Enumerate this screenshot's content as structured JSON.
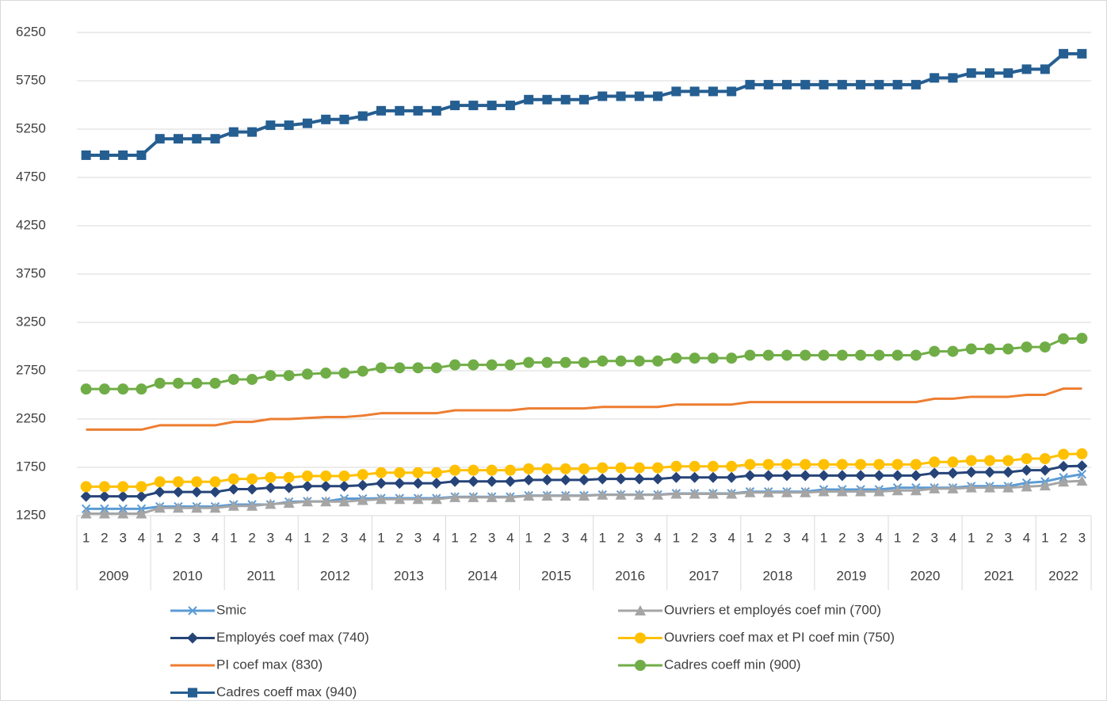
{
  "chart_data": {
    "type": "line",
    "categories": [
      "1",
      "2",
      "3",
      "4",
      "1",
      "2",
      "3",
      "4",
      "1",
      "2",
      "3",
      "4",
      "1",
      "2",
      "3",
      "4",
      "1",
      "2",
      "3",
      "4",
      "1",
      "2",
      "3",
      "4",
      "1",
      "2",
      "3",
      "4",
      "1",
      "2",
      "3",
      "4",
      "1",
      "2",
      "3",
      "4",
      "1",
      "2",
      "3",
      "4",
      "1",
      "2",
      "3",
      "4",
      "1",
      "2",
      "3",
      "4",
      "1",
      "2",
      "3",
      "4",
      "1",
      "2",
      "3"
    ],
    "category_groups": [
      {
        "label": "2009",
        "count": 4
      },
      {
        "label": "2010",
        "count": 4
      },
      {
        "label": "2011",
        "count": 4
      },
      {
        "label": "2012",
        "count": 4
      },
      {
        "label": "2013",
        "count": 4
      },
      {
        "label": "2014",
        "count": 4
      },
      {
        "label": "2015",
        "count": 4
      },
      {
        "label": "2016",
        "count": 4
      },
      {
        "label": "2017",
        "count": 4
      },
      {
        "label": "2018",
        "count": 4
      },
      {
        "label": "2019",
        "count": 4
      },
      {
        "label": "2020",
        "count": 4
      },
      {
        "label": "2021",
        "count": 4
      },
      {
        "label": "2022",
        "count": 3
      }
    ],
    "ylim": [
      1250,
      6250
    ],
    "yticks": [
      1250,
      1750,
      2250,
      2750,
      3250,
      3750,
      4250,
      4750,
      5250,
      5750,
      6250
    ],
    "grid": true,
    "legend": "bottom",
    "series": [
      {
        "name": "Smic",
        "color": "#5b9bd5",
        "marker": "x",
        "values": [
          1321,
          1321,
          1321,
          1321,
          1344,
          1344,
          1344,
          1344,
          1365,
          1365,
          1365,
          1393,
          1398,
          1398,
          1426,
          1426,
          1430,
          1430,
          1430,
          1430,
          1445,
          1445,
          1445,
          1445,
          1458,
          1458,
          1458,
          1458,
          1467,
          1467,
          1467,
          1467,
          1480,
          1480,
          1480,
          1480,
          1498,
          1498,
          1498,
          1498,
          1521,
          1521,
          1521,
          1521,
          1539,
          1539,
          1539,
          1539,
          1555,
          1555,
          1555,
          1589,
          1603,
          1646,
          1679
        ]
      },
      {
        "name": "Ouvriers et employés coef min (700)",
        "color": "#a5a5a5",
        "marker": "triangle",
        "values": [
          1270,
          1270,
          1270,
          1270,
          1330,
          1330,
          1330,
          1330,
          1350,
          1350,
          1370,
          1380,
          1395,
          1395,
          1395,
          1410,
          1420,
          1420,
          1420,
          1420,
          1440,
          1440,
          1440,
          1440,
          1455,
          1455,
          1455,
          1455,
          1465,
          1465,
          1465,
          1465,
          1475,
          1475,
          1475,
          1475,
          1490,
          1490,
          1490,
          1490,
          1500,
          1500,
          1500,
          1500,
          1510,
          1510,
          1530,
          1530,
          1540,
          1540,
          1540,
          1550,
          1560,
          1600,
          1610
        ]
      },
      {
        "name": "Employés coef max (740)",
        "color": "#264478",
        "marker": "diamond",
        "values": [
          1450,
          1450,
          1450,
          1450,
          1495,
          1495,
          1495,
          1495,
          1525,
          1525,
          1540,
          1540,
          1555,
          1555,
          1555,
          1565,
          1585,
          1585,
          1585,
          1585,
          1605,
          1605,
          1605,
          1605,
          1620,
          1620,
          1620,
          1620,
          1630,
          1630,
          1630,
          1630,
          1645,
          1645,
          1645,
          1645,
          1665,
          1665,
          1665,
          1665,
          1665,
          1665,
          1665,
          1665,
          1665,
          1665,
          1690,
          1690,
          1700,
          1700,
          1700,
          1720,
          1720,
          1760,
          1765
        ]
      },
      {
        "name": "Ouvriers coef max et PI coef min (750)",
        "color": "#ffc000",
        "marker": "circle",
        "values": [
          1550,
          1550,
          1550,
          1550,
          1600,
          1600,
          1600,
          1600,
          1630,
          1630,
          1645,
          1645,
          1660,
          1660,
          1660,
          1675,
          1695,
          1695,
          1695,
          1695,
          1720,
          1720,
          1720,
          1720,
          1735,
          1735,
          1735,
          1735,
          1745,
          1745,
          1745,
          1745,
          1760,
          1760,
          1760,
          1760,
          1780,
          1780,
          1780,
          1780,
          1780,
          1780,
          1780,
          1780,
          1780,
          1780,
          1805,
          1805,
          1820,
          1820,
          1820,
          1840,
          1840,
          1885,
          1890
        ]
      },
      {
        "name": "PI coef max (830)",
        "color": "#ed7d31",
        "marker": "none",
        "values": [
          2140,
          2140,
          2140,
          2140,
          2185,
          2185,
          2185,
          2185,
          2220,
          2220,
          2250,
          2250,
          2260,
          2270,
          2270,
          2285,
          2310,
          2310,
          2310,
          2310,
          2340,
          2340,
          2340,
          2340,
          2360,
          2360,
          2360,
          2360,
          2375,
          2375,
          2375,
          2375,
          2400,
          2400,
          2400,
          2400,
          2425,
          2425,
          2425,
          2425,
          2425,
          2425,
          2425,
          2425,
          2425,
          2425,
          2460,
          2460,
          2480,
          2480,
          2480,
          2500,
          2500,
          2565,
          2565
        ]
      },
      {
        "name": "Cadres coeff min (900)",
        "color": "#70ad47",
        "marker": "circle",
        "values": [
          2560,
          2560,
          2560,
          2560,
          2620,
          2620,
          2620,
          2620,
          2660,
          2660,
          2700,
          2700,
          2715,
          2725,
          2725,
          2745,
          2780,
          2780,
          2780,
          2780,
          2810,
          2810,
          2810,
          2810,
          2835,
          2835,
          2835,
          2835,
          2850,
          2850,
          2850,
          2850,
          2880,
          2880,
          2880,
          2880,
          2910,
          2910,
          2910,
          2910,
          2910,
          2910,
          2910,
          2910,
          2910,
          2910,
          2950,
          2950,
          2975,
          2975,
          2975,
          2995,
          2995,
          3080,
          3085
        ]
      },
      {
        "name": "Cadres coeff max (940)",
        "color": "#255e91",
        "marker": "square",
        "values": [
          4980,
          4980,
          4980,
          4980,
          5150,
          5150,
          5150,
          5150,
          5220,
          5220,
          5290,
          5290,
          5310,
          5350,
          5350,
          5385,
          5440,
          5440,
          5440,
          5440,
          5495,
          5495,
          5495,
          5495,
          5555,
          5555,
          5555,
          5555,
          5590,
          5590,
          5590,
          5590,
          5640,
          5640,
          5640,
          5640,
          5710,
          5710,
          5710,
          5710,
          5710,
          5710,
          5710,
          5710,
          5710,
          5710,
          5780,
          5780,
          5830,
          5830,
          5830,
          5870,
          5870,
          6030,
          6030
        ]
      }
    ]
  }
}
